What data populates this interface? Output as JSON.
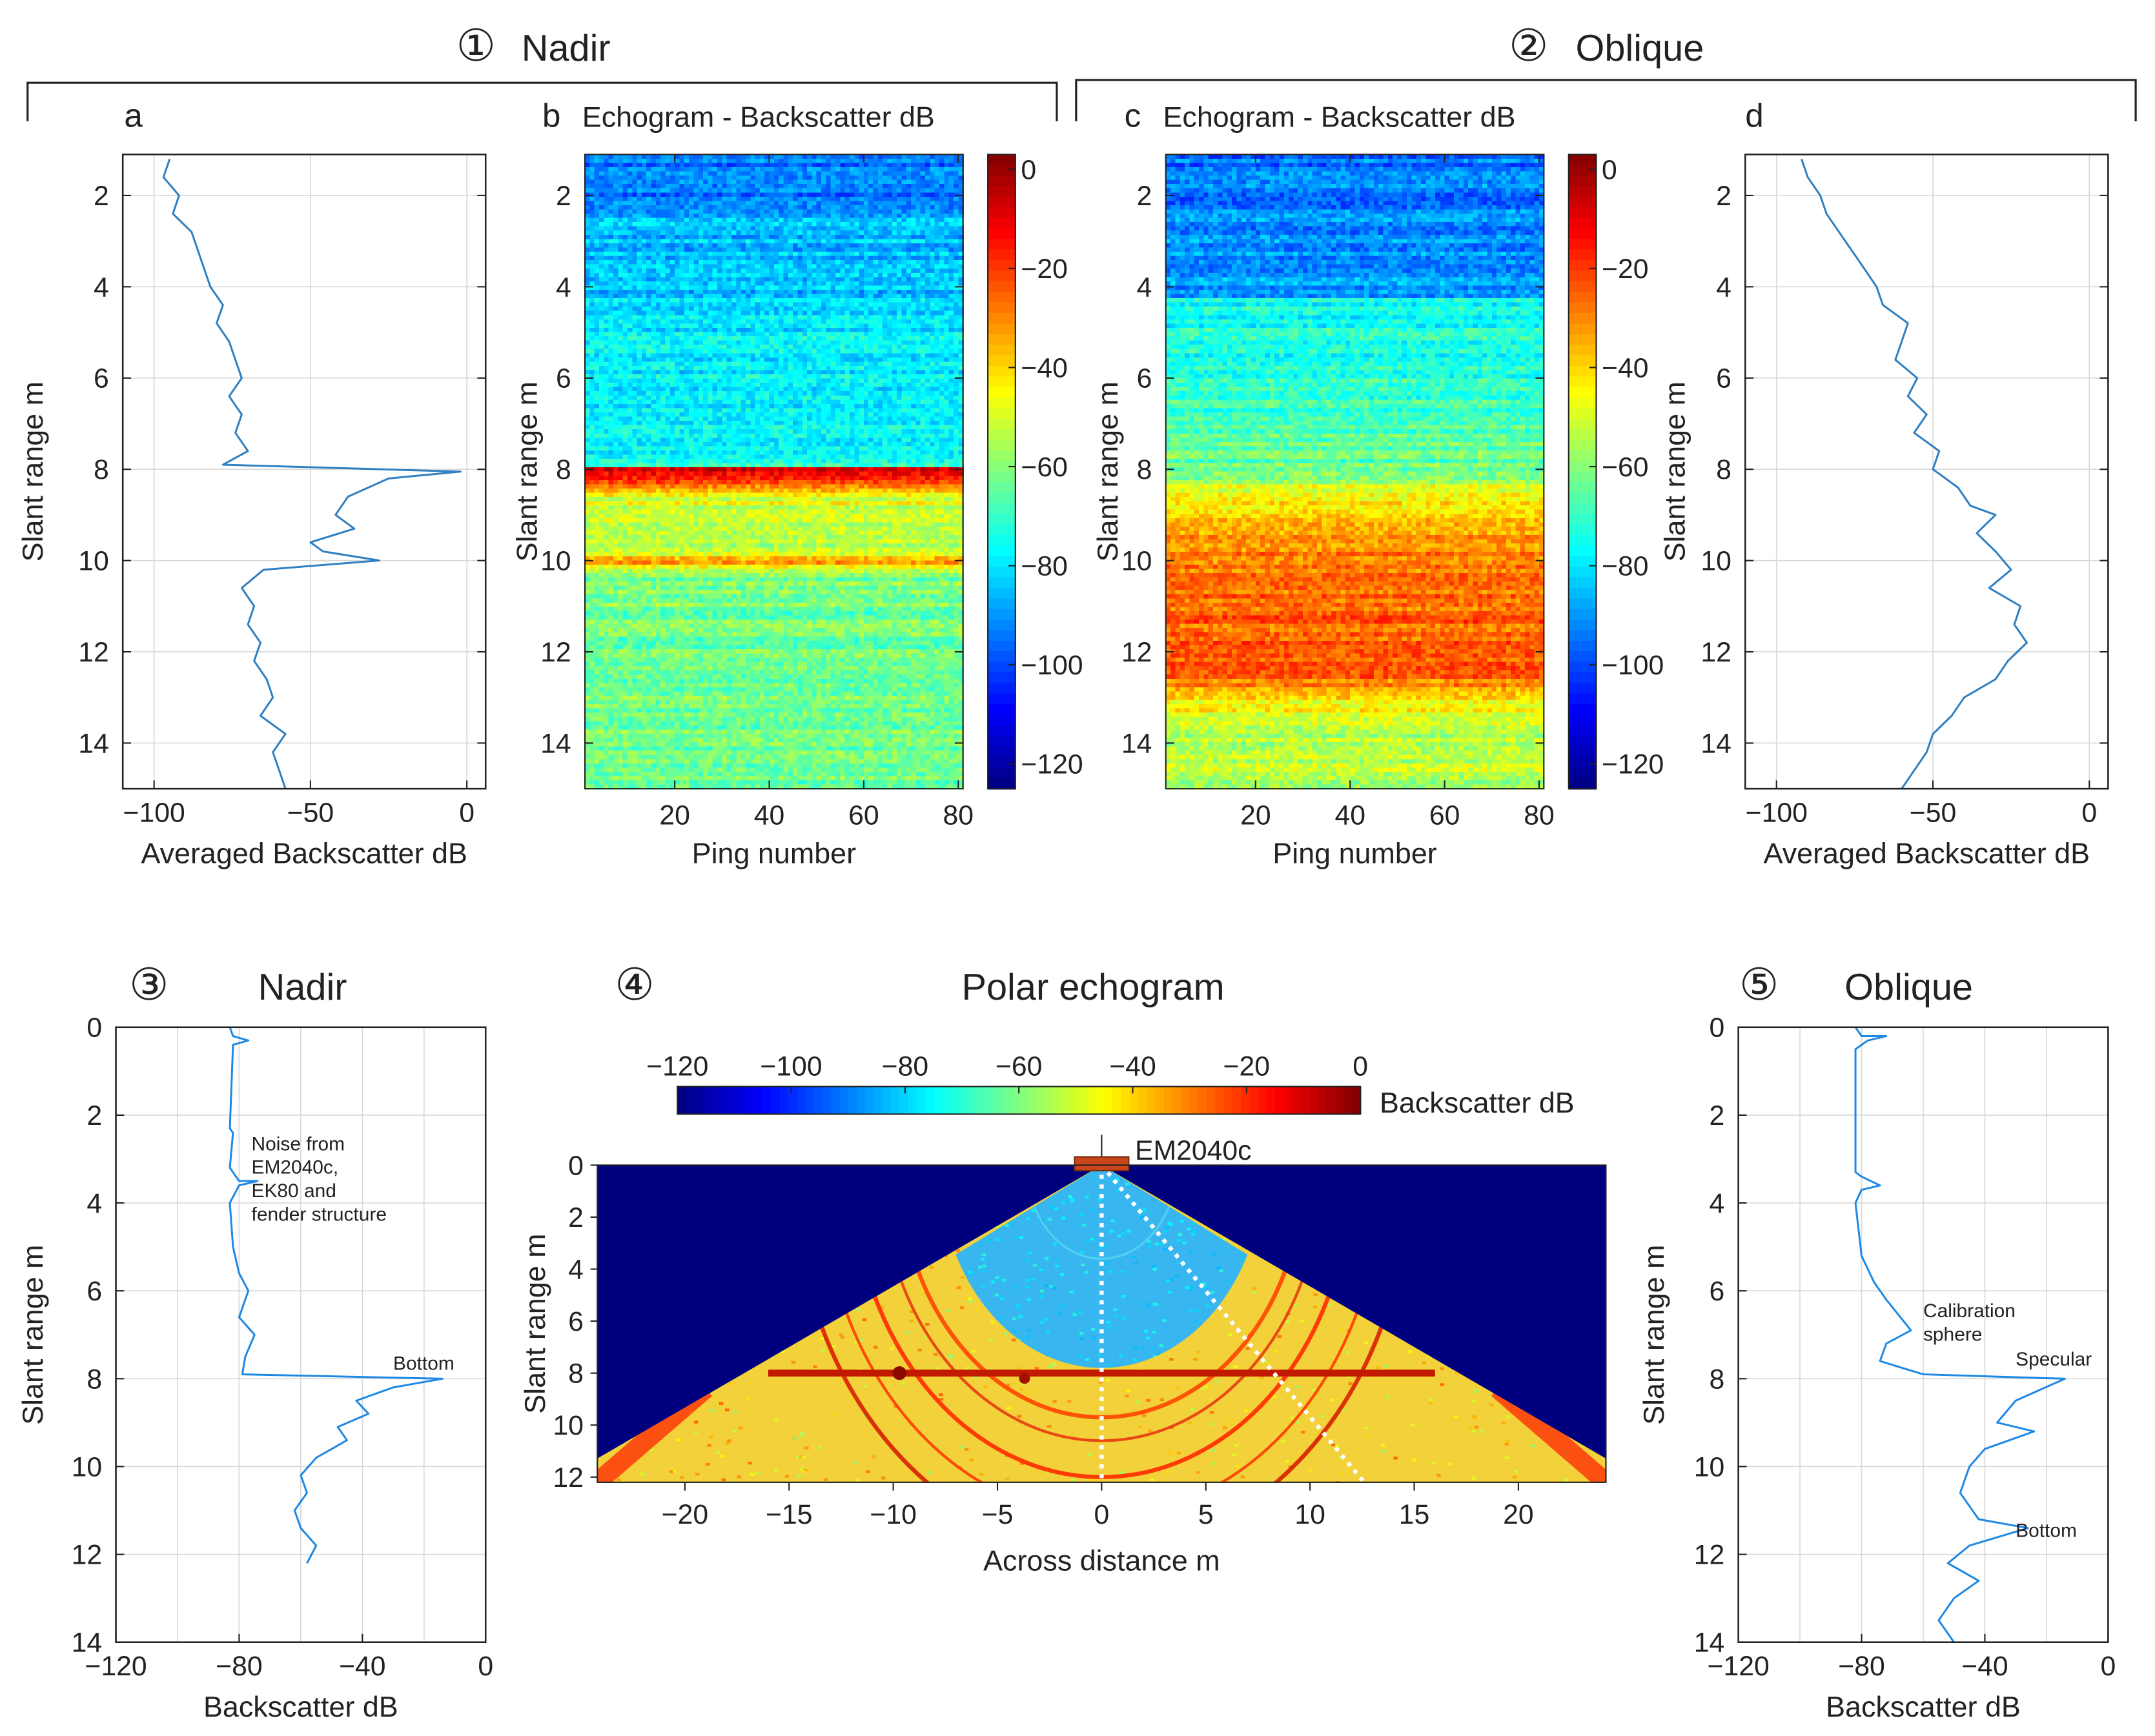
{
  "groups": {
    "g1": {
      "marker": "①",
      "label": "Nadir"
    },
    "g2": {
      "marker": "②",
      "label": "Oblique"
    },
    "g3": {
      "marker": "③",
      "label": "Nadir"
    },
    "g4": {
      "marker": "④",
      "label": "Polar echogram"
    },
    "g5": {
      "marker": "⑤",
      "label": "Oblique"
    }
  },
  "colors": {
    "line": "#2f7fc1",
    "line_bottom": "#1e88e5",
    "grid": "#d9d9d9",
    "deep_blue": "#00007f",
    "transducer": "#c8461a",
    "jet": [
      "#00007f",
      "#0000ff",
      "#007fff",
      "#00ffff",
      "#7fff7f",
      "#ffff00",
      "#ff7f00",
      "#ff0000",
      "#7f0000"
    ]
  },
  "chart_data": [
    {
      "id": "a",
      "panel_letter": "a",
      "type": "line",
      "xlabel": "Averaged Backscatter dB",
      "ylabel": "Slant range m",
      "xlim": [
        -110,
        6
      ],
      "ylim": [
        15,
        1.1
      ],
      "grid": true,
      "xticks": [
        -100,
        -50,
        0
      ],
      "yticks": [
        2,
        4,
        6,
        8,
        10,
        12,
        14
      ],
      "series": [
        {
          "points": [
            [
              -95,
              1.2
            ],
            [
              -97,
              1.6
            ],
            [
              -92,
              2.0
            ],
            [
              -94,
              2.4
            ],
            [
              -88,
              2.8
            ],
            [
              -86,
              3.2
            ],
            [
              -84,
              3.6
            ],
            [
              -82,
              4.0
            ],
            [
              -78,
              4.4
            ],
            [
              -80,
              4.8
            ],
            [
              -76,
              5.2
            ],
            [
              -74,
              5.6
            ],
            [
              -72,
              6.0
            ],
            [
              -76,
              6.4
            ],
            [
              -72,
              6.8
            ],
            [
              -74,
              7.2
            ],
            [
              -70,
              7.6
            ],
            [
              -78,
              7.9
            ],
            [
              -2,
              8.05
            ],
            [
              -25,
              8.2
            ],
            [
              -38,
              8.6
            ],
            [
              -42,
              9.0
            ],
            [
              -36,
              9.3
            ],
            [
              -50,
              9.6
            ],
            [
              -46,
              9.8
            ],
            [
              -28,
              10.0
            ],
            [
              -65,
              10.2
            ],
            [
              -72,
              10.6
            ],
            [
              -68,
              11.0
            ],
            [
              -70,
              11.4
            ],
            [
              -66,
              11.8
            ],
            [
              -68,
              12.2
            ],
            [
              -64,
              12.6
            ],
            [
              -62,
              13.0
            ],
            [
              -66,
              13.4
            ],
            [
              -58,
              13.8
            ],
            [
              -62,
              14.2
            ],
            [
              -60,
              14.6
            ],
            [
              -58,
              15.0
            ]
          ]
        }
      ]
    },
    {
      "id": "b",
      "panel_letter": "b",
      "type": "heatmap",
      "title": "Echogram - Backscatter dB",
      "xlabel": "Ping number",
      "ylabel": "Slant range m",
      "xlim": [
        1,
        81
      ],
      "ylim": [
        15,
        1.1
      ],
      "xticks": [
        20,
        40,
        60,
        80
      ],
      "yticks": [
        2,
        4,
        6,
        8,
        10,
        12,
        14
      ],
      "colorbar_ticks": [
        0,
        -20,
        -40,
        -60,
        -80,
        -100,
        -120
      ],
      "colorbar_range": [
        -125,
        3
      ],
      "profile": [
        [
          1.1,
          -95
        ],
        [
          2.3,
          -95
        ],
        [
          2.4,
          -85
        ],
        [
          4.2,
          -85
        ],
        [
          4.3,
          -80
        ],
        [
          7.9,
          -77
        ],
        [
          8.0,
          -4
        ],
        [
          8.3,
          -22
        ],
        [
          8.6,
          -48
        ],
        [
          9.8,
          -54
        ],
        [
          10.0,
          -28
        ],
        [
          10.3,
          -62
        ],
        [
          15.0,
          -64
        ]
      ]
    },
    {
      "id": "c",
      "panel_letter": "c",
      "type": "heatmap",
      "title": "Echogram - Backscatter dB",
      "xlabel": "Ping number",
      "ylabel": "Slant range m",
      "xlim": [
        1,
        81
      ],
      "ylim": [
        15,
        1.1
      ],
      "xticks": [
        20,
        40,
        60,
        80
      ],
      "yticks": [
        2,
        4,
        6,
        8,
        10,
        12,
        14
      ],
      "colorbar_ticks": [
        0,
        -20,
        -40,
        -60,
        -80,
        -100,
        -120
      ],
      "colorbar_range": [
        -125,
        3
      ],
      "profile": [
        [
          1.1,
          -95
        ],
        [
          4.2,
          -88
        ],
        [
          4.3,
          -75
        ],
        [
          6.3,
          -72
        ],
        [
          6.5,
          -68
        ],
        [
          8.0,
          -64
        ],
        [
          8.3,
          -52
        ],
        [
          9.0,
          -38
        ],
        [
          10.0,
          -28
        ],
        [
          10.5,
          -25
        ],
        [
          12.5,
          -24
        ],
        [
          13.0,
          -40
        ],
        [
          13.5,
          -52
        ],
        [
          15.0,
          -54
        ]
      ]
    },
    {
      "id": "d",
      "panel_letter": "d",
      "type": "line",
      "xlabel": "Averaged Backscatter dB",
      "ylabel": "Slant range m",
      "xlim": [
        -110,
        6
      ],
      "ylim": [
        15,
        1.1
      ],
      "grid": true,
      "xticks": [
        -100,
        -50,
        0
      ],
      "yticks": [
        2,
        4,
        6,
        8,
        10,
        12,
        14
      ],
      "series": [
        {
          "points": [
            [
              -92,
              1.2
            ],
            [
              -90,
              1.6
            ],
            [
              -86,
              2.0
            ],
            [
              -84,
              2.4
            ],
            [
              -80,
              2.8
            ],
            [
              -76,
              3.2
            ],
            [
              -72,
              3.6
            ],
            [
              -68,
              4.0
            ],
            [
              -66,
              4.4
            ],
            [
              -58,
              4.8
            ],
            [
              -60,
              5.2
            ],
            [
              -62,
              5.6
            ],
            [
              -55,
              6.0
            ],
            [
              -58,
              6.4
            ],
            [
              -52,
              6.8
            ],
            [
              -56,
              7.2
            ],
            [
              -48,
              7.6
            ],
            [
              -50,
              8.0
            ],
            [
              -42,
              8.4
            ],
            [
              -38,
              8.8
            ],
            [
              -30,
              9.0
            ],
            [
              -36,
              9.4
            ],
            [
              -30,
              9.8
            ],
            [
              -25,
              10.2
            ],
            [
              -32,
              10.6
            ],
            [
              -22,
              11.0
            ],
            [
              -24,
              11.4
            ],
            [
              -20,
              11.8
            ],
            [
              -26,
              12.2
            ],
            [
              -30,
              12.6
            ],
            [
              -40,
              13.0
            ],
            [
              -44,
              13.4
            ],
            [
              -50,
              13.8
            ],
            [
              -52,
              14.2
            ],
            [
              -56,
              14.6
            ],
            [
              -60,
              15.0
            ]
          ]
        }
      ]
    },
    {
      "id": "e",
      "type": "line",
      "xlabel": "Backscatter dB",
      "ylabel": "Slant range m",
      "xlim": [
        -120,
        0
      ],
      "ylim": [
        14,
        0
      ],
      "grid": true,
      "xticks": [
        -120,
        -80,
        -40,
        0
      ],
      "yticks": [
        0,
        2,
        4,
        6,
        8,
        10,
        12,
        14
      ],
      "annotations": [
        {
          "text": [
            "Noise from",
            "EM2040c,",
            "EK80 and",
            "fender structure"
          ],
          "x": -76,
          "y": 2.8
        },
        {
          "text": [
            "Bottom"
          ],
          "x": -30,
          "y": 7.8
        }
      ],
      "series": [
        {
          "points": [
            [
              -83,
              0
            ],
            [
              -82,
              0.2
            ],
            [
              -77,
              0.3
            ],
            [
              -82,
              0.4
            ],
            [
              -83,
              2.3
            ],
            [
              -82,
              2.4
            ],
            [
              -83,
              3.2
            ],
            [
              -80,
              3.5
            ],
            [
              -74,
              3.5
            ],
            [
              -80,
              3.6
            ],
            [
              -83,
              4.0
            ],
            [
              -82,
              5.0
            ],
            [
              -80,
              5.6
            ],
            [
              -77,
              6.0
            ],
            [
              -80,
              6.6
            ],
            [
              -75,
              7.0
            ],
            [
              -78,
              7.5
            ],
            [
              -79,
              7.9
            ],
            [
              -14,
              8.0
            ],
            [
              -30,
              8.2
            ],
            [
              -42,
              8.5
            ],
            [
              -38,
              8.8
            ],
            [
              -48,
              9.1
            ],
            [
              -45,
              9.4
            ],
            [
              -55,
              9.8
            ],
            [
              -60,
              10.2
            ],
            [
              -58,
              10.6
            ],
            [
              -62,
              11.0
            ],
            [
              -60,
              11.4
            ],
            [
              -55,
              11.8
            ],
            [
              -58,
              12.2
            ]
          ]
        }
      ]
    },
    {
      "id": "f",
      "type": "heatmap",
      "xlabel": "Across distance m",
      "ylabel": "Slant range m",
      "xlim": [
        -24.2,
        24.2
      ],
      "ylim": [
        12.2,
        0
      ],
      "xticks": [
        -20,
        -15,
        -10,
        -5,
        0,
        5,
        10,
        15,
        20
      ],
      "yticks": [
        0,
        2,
        4,
        6,
        8,
        10,
        12
      ],
      "colorbar_label": "Backscatter dB",
      "colorbar_ticks": [
        -120,
        -100,
        -80,
        -60,
        -40,
        -20,
        0
      ],
      "colorbar_range": [
        -120,
        0
      ],
      "transducer_label": "EM2040c",
      "swath_half_angle_deg": 65,
      "inner_radius_m": 7.8,
      "bottom_depth_m": 8.0
    },
    {
      "id": "g",
      "type": "line",
      "xlabel": "Backscatter dB",
      "ylabel": "Slant range m",
      "xlim": [
        -120,
        0
      ],
      "ylim": [
        14,
        0
      ],
      "grid": true,
      "xticks": [
        -120,
        -80,
        -40,
        0
      ],
      "yticks": [
        0,
        2,
        4,
        6,
        8,
        10,
        12,
        14
      ],
      "annotations": [
        {
          "text": [
            "Calibration",
            "sphere"
          ],
          "x": -60,
          "y": 6.6
        },
        {
          "text": [
            "Specular"
          ],
          "x": -30,
          "y": 7.7
        },
        {
          "text": [
            "Bottom"
          ],
          "x": -30,
          "y": 11.6
        }
      ],
      "series": [
        {
          "points": [
            [
              -82,
              0
            ],
            [
              -80,
              0.2
            ],
            [
              -72,
              0.2
            ],
            [
              -78,
              0.3
            ],
            [
              -82,
              0.5
            ],
            [
              -82,
              3.3
            ],
            [
              -80,
              3.4
            ],
            [
              -74,
              3.6
            ],
            [
              -80,
              3.7
            ],
            [
              -82,
              4.0
            ],
            [
              -80,
              5.2
            ],
            [
              -76,
              5.8
            ],
            [
              -72,
              6.2
            ],
            [
              -64,
              6.9
            ],
            [
              -72,
              7.2
            ],
            [
              -74,
              7.6
            ],
            [
              -60,
              7.9
            ],
            [
              -14,
              8.0
            ],
            [
              -30,
              8.5
            ],
            [
              -36,
              9.0
            ],
            [
              -24,
              9.2
            ],
            [
              -40,
              9.6
            ],
            [
              -45,
              10.0
            ],
            [
              -48,
              10.6
            ],
            [
              -42,
              11.2
            ],
            [
              -26,
              11.4
            ],
            [
              -45,
              11.8
            ],
            [
              -52,
              12.2
            ],
            [
              -42,
              12.6
            ],
            [
              -50,
              13.0
            ],
            [
              -55,
              13.5
            ],
            [
              -50,
              14.0
            ]
          ]
        }
      ]
    }
  ]
}
